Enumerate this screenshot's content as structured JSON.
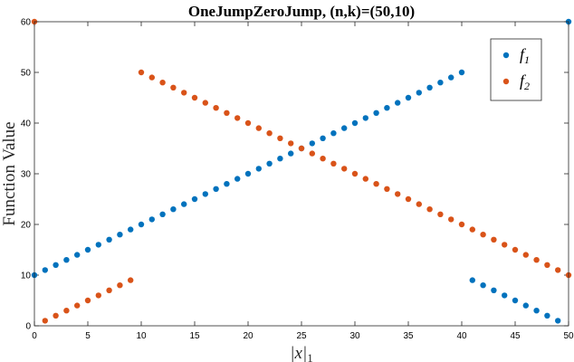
{
  "chart_data": {
    "type": "scatter",
    "title": "OneJumpZeroJump, (n,k)=(50,10)",
    "xlabel": "|x|",
    "xlabel_subscript": "1",
    "ylabel": "Function Value",
    "xlim": [
      0,
      50
    ],
    "ylim": [
      0,
      60
    ],
    "xticks": [
      0,
      5,
      10,
      15,
      20,
      25,
      30,
      35,
      40,
      45,
      50
    ],
    "yticks": [
      0,
      10,
      20,
      30,
      40,
      50,
      60
    ],
    "grid": false,
    "legend_position": "top-right",
    "series": [
      {
        "name": "f",
        "subscript": "1",
        "color": "#0072BD",
        "x": [
          0,
          1,
          2,
          3,
          4,
          5,
          6,
          7,
          8,
          9,
          10,
          11,
          12,
          13,
          14,
          15,
          16,
          17,
          18,
          19,
          20,
          21,
          22,
          23,
          24,
          25,
          26,
          27,
          28,
          29,
          30,
          31,
          32,
          33,
          34,
          35,
          36,
          37,
          38,
          39,
          40,
          41,
          42,
          43,
          44,
          45,
          46,
          47,
          48,
          49,
          50
        ],
        "y": [
          10,
          11,
          12,
          13,
          14,
          15,
          16,
          17,
          18,
          19,
          20,
          21,
          22,
          23,
          24,
          25,
          26,
          27,
          28,
          29,
          30,
          31,
          32,
          33,
          34,
          35,
          36,
          37,
          38,
          39,
          40,
          41,
          42,
          43,
          44,
          45,
          46,
          47,
          48,
          49,
          50,
          9,
          8,
          7,
          6,
          5,
          4,
          3,
          2,
          1,
          60
        ]
      },
      {
        "name": "f",
        "subscript": "2",
        "color": "#D95319",
        "x": [
          0,
          1,
          2,
          3,
          4,
          5,
          6,
          7,
          8,
          9,
          10,
          11,
          12,
          13,
          14,
          15,
          16,
          17,
          18,
          19,
          20,
          21,
          22,
          23,
          24,
          25,
          26,
          27,
          28,
          29,
          30,
          31,
          32,
          33,
          34,
          35,
          36,
          37,
          38,
          39,
          40,
          41,
          42,
          43,
          44,
          45,
          46,
          47,
          48,
          49,
          50
        ],
        "y": [
          60,
          1,
          2,
          3,
          4,
          5,
          6,
          7,
          8,
          9,
          50,
          49,
          48,
          47,
          46,
          45,
          44,
          43,
          42,
          41,
          40,
          39,
          38,
          37,
          36,
          35,
          34,
          33,
          32,
          31,
          30,
          29,
          28,
          27,
          26,
          25,
          24,
          23,
          22,
          21,
          20,
          19,
          18,
          17,
          16,
          15,
          14,
          13,
          12,
          11,
          10
        ]
      }
    ]
  }
}
